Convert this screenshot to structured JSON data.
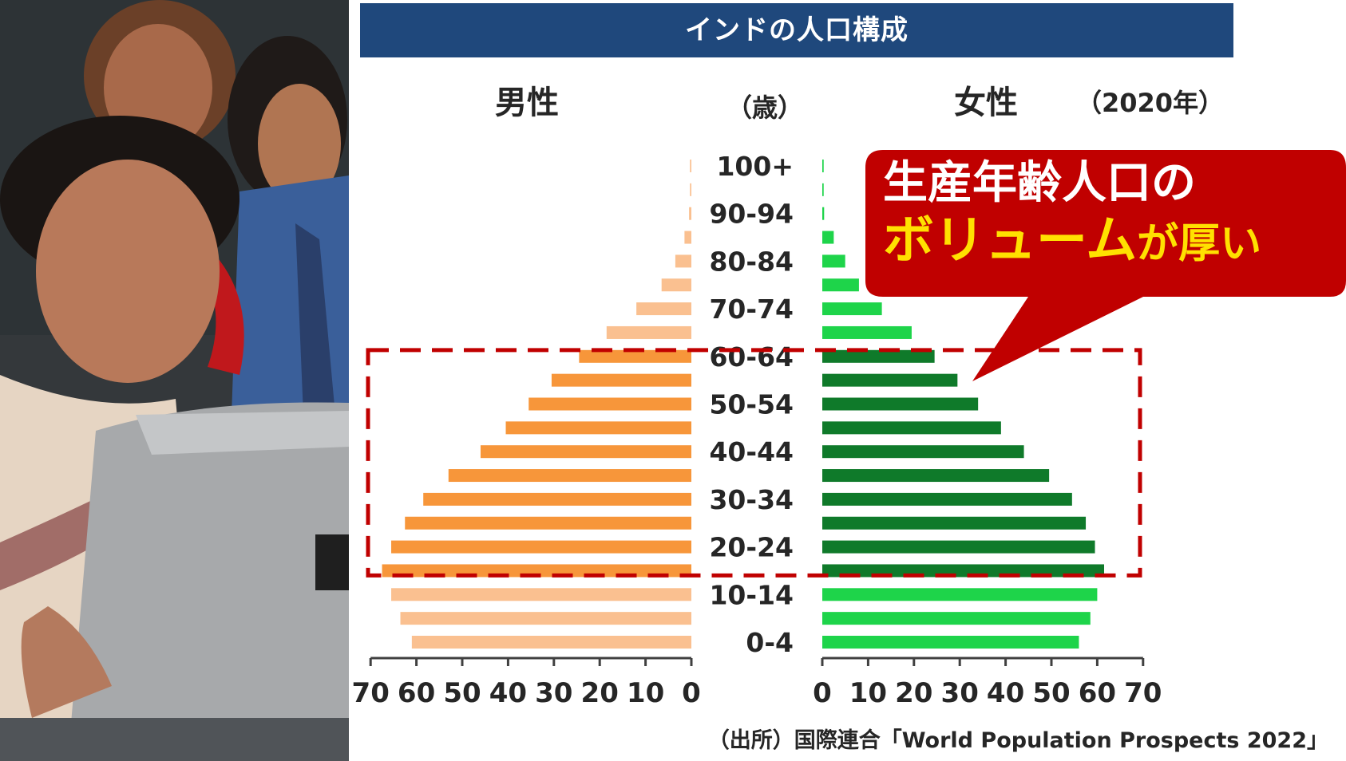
{
  "title": "インドの人口構成",
  "male_label": "男性",
  "female_label": "女性",
  "age_unit_label": "（歳）",
  "year_label": "（2020年）",
  "callout": {
    "line1": "生産年齢人口の",
    "highlight": "ボリューム",
    "line2_rest": "が厚い"
  },
  "source": "（出所）国際連合「World Population Prospects 2022」",
  "colors": {
    "title_bg": "#1f487c",
    "male_light": "#fac090",
    "male_dark": "#f7963a",
    "female_light": "#1ed44a",
    "female_dark": "#0f7a2a",
    "callout_bg": "#c00000",
    "callout_highlight": "#ffe000",
    "dashed_box": "#c00000"
  },
  "chart_data": {
    "type": "bar",
    "subtype": "population-pyramid",
    "categories": [
      "0-4",
      "5-9",
      "10-14",
      "15-19",
      "20-24",
      "25-29",
      "30-34",
      "35-39",
      "40-44",
      "45-49",
      "50-54",
      "55-59",
      "60-64",
      "65-69",
      "70-74",
      "75-79",
      "80-84",
      "85-89",
      "90-94",
      "95-99",
      "100+"
    ],
    "age_tick_labels": [
      "0-4",
      "10-14",
      "20-24",
      "30-34",
      "40-44",
      "50-54",
      "60-64",
      "70-74",
      "80-84",
      "90-94",
      "100+"
    ],
    "series": [
      {
        "name": "男性",
        "side": "left",
        "values": [
          61,
          63.5,
          65.5,
          67.5,
          65.5,
          62.5,
          58.5,
          53,
          46,
          40.5,
          35.5,
          30.5,
          24.5,
          18.5,
          12,
          6.5,
          3.5,
          1.5,
          0.5,
          0.3,
          0.3
        ]
      },
      {
        "name": "女性",
        "side": "right",
        "values": [
          56,
          58.5,
          60,
          61.5,
          59.5,
          57.5,
          54.5,
          49.5,
          44,
          39,
          34,
          29.5,
          24.5,
          19.5,
          13,
          8,
          5,
          2.5,
          0.4,
          0.3,
          0.3
        ]
      }
    ],
    "highlighted_age_groups": [
      "15-19",
      "20-24",
      "25-29",
      "30-34",
      "35-39",
      "40-44",
      "45-49",
      "50-54",
      "55-59",
      "60-64"
    ],
    "x_ticks": [
      0,
      10,
      20,
      30,
      40,
      50,
      60,
      70
    ],
    "xlim": [
      0,
      70
    ]
  }
}
